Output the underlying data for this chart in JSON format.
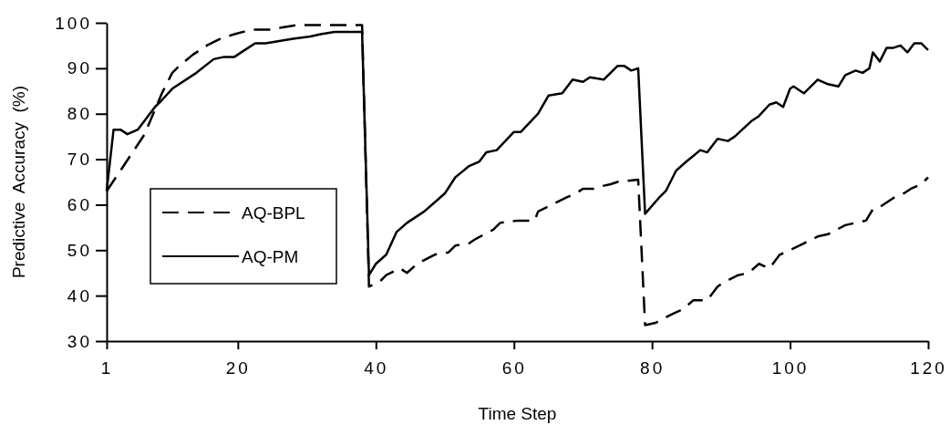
{
  "chart_data": {
    "type": "line",
    "xlabel": "Time Step",
    "ylabel": "Predictive  Accuracy  (%)",
    "xlim": [
      1,
      120
    ],
    "xticks": [
      1,
      20,
      40,
      60,
      80,
      100,
      120
    ],
    "ylim": [
      30,
      100
    ],
    "yticks": [
      30,
      40,
      50,
      60,
      70,
      80,
      90,
      100
    ],
    "grid": false,
    "legend": "left",
    "marker": "none",
    "series": [
      {
        "name": "AQ-BPL",
        "color": "#000000",
        "line_style": "dashed",
        "x": [
          1,
          3,
          6.5,
          9,
          10.5,
          11.5,
          13.5,
          15.5,
          17.5,
          19.5,
          22,
          24.5,
          26.5,
          28.5,
          38,
          39,
          40.5,
          41.5,
          43.5,
          44.5,
          46,
          48.5,
          50.5,
          51.5,
          53.5,
          54.5,
          57,
          58,
          60.5,
          63,
          63.5,
          65.5,
          67.5,
          69,
          70,
          71.5,
          72.5,
          74,
          75,
          78,
          79,
          80.5,
          83,
          84.5,
          86,
          88,
          89.5,
          90.5,
          92.5,
          94,
          95.5,
          97,
          98.5,
          100,
          102,
          104,
          105.5,
          108,
          109.5,
          111,
          112,
          113,
          115,
          116.5,
          117.5,
          119,
          120
        ],
        "values": [
          63,
          67.5,
          75.5,
          84.5,
          89,
          90.5,
          93,
          95,
          96.5,
          97.5,
          98.5,
          98.5,
          99,
          99.5,
          99.5,
          42,
          43,
          44.5,
          46,
          45,
          47,
          49,
          49.5,
          51,
          51.5,
          52.5,
          54.5,
          56,
          56.5,
          56.5,
          58.5,
          60,
          61.5,
          62.5,
          63.5,
          63.5,
          64,
          64.5,
          65,
          65.5,
          33.5,
          34,
          36,
          37,
          39,
          39,
          42,
          43,
          44.5,
          45,
          47,
          46,
          49,
          50,
          51.5,
          53,
          53.5,
          55.5,
          56,
          56.5,
          59,
          59.5,
          61.5,
          62.5,
          63.5,
          64.5,
          66
        ]
      },
      {
        "name": "AQ-PM",
        "color": "#000000",
        "line_style": "solid",
        "x": [
          1,
          2,
          3,
          4,
          5.5,
          6.5,
          8,
          9,
          10.5,
          11.5,
          14,
          16.5,
          18,
          19.5,
          20.5,
          22.5,
          24,
          26,
          28,
          30.5,
          32,
          34,
          38,
          39,
          40,
          41.5,
          43,
          44.5,
          47,
          48.5,
          50,
          51.5,
          53.5,
          55,
          56,
          57.5,
          60,
          61,
          63.5,
          65,
          67,
          68.5,
          70,
          71,
          73,
          75,
          76,
          77,
          78,
          79,
          81,
          82,
          83.5,
          85,
          87,
          88,
          89.5,
          91,
          92,
          94.5,
          95.5,
          97,
          98,
          99,
          100,
          100.5,
          102,
          104,
          105.5,
          107,
          108,
          109.5,
          110.5,
          111.5,
          112,
          113,
          114,
          115,
          116,
          117,
          118,
          119,
          120
        ],
        "values": [
          63,
          76.5,
          76.5,
          75.5,
          76.5,
          78.5,
          81.5,
          83,
          85.5,
          86.5,
          89,
          92,
          92.5,
          92.5,
          93.5,
          95.5,
          95.5,
          96,
          96.5,
          97,
          97.5,
          98,
          98,
          44.5,
          47,
          49,
          54,
          56,
          58.5,
          60.5,
          62.5,
          66,
          68.5,
          69.5,
          71.5,
          72,
          76,
          76,
          80,
          84,
          84.5,
          87.5,
          87,
          88,
          87.5,
          90.5,
          90.5,
          89.5,
          90,
          58,
          61.5,
          63,
          67.5,
          69.5,
          72,
          71.5,
          74.5,
          74,
          75,
          78.5,
          79.5,
          82,
          82.5,
          81.5,
          85.5,
          86,
          84.5,
          87.5,
          86.5,
          86,
          88.5,
          89.5,
          89,
          90,
          93.5,
          91.5,
          94.5,
          94.5,
          95,
          93.5,
          95.5,
          95.5,
          94
        ]
      }
    ]
  }
}
